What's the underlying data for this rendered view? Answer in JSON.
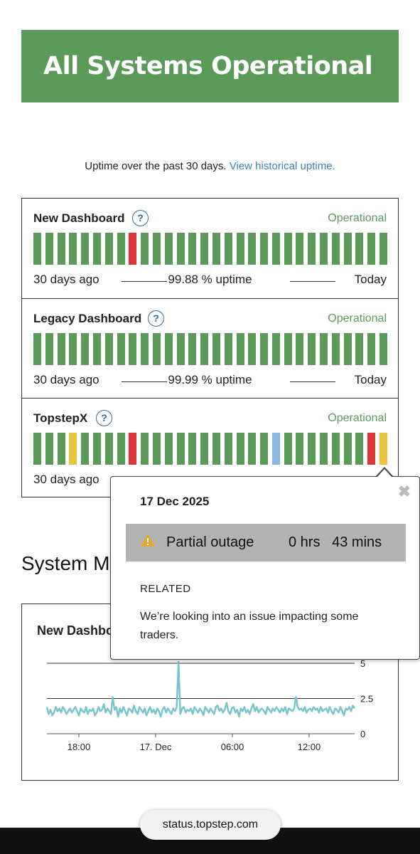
{
  "banner": {
    "title": "All Systems Operational",
    "color": "#5c9a5a"
  },
  "uptime_note": {
    "text": "Uptime over the past 30 days.",
    "link": "View historical uptime."
  },
  "colors": {
    "operational": "#5c9a5a",
    "major_outage": "#d8373a",
    "partial_outage": "#e9c240",
    "maintenance": "#8ab6e0"
  },
  "components": [
    {
      "name": "New Dashboard",
      "help_icon": "question-circle-icon",
      "status": "Operational",
      "days": [
        "ok",
        "ok",
        "ok",
        "ok",
        "ok",
        "ok",
        "ok",
        "ok",
        "major",
        "ok",
        "ok",
        "ok",
        "ok",
        "ok",
        "ok",
        "ok",
        "ok",
        "ok",
        "ok",
        "ok",
        "ok",
        "ok",
        "ok",
        "ok",
        "ok",
        "ok",
        "ok",
        "ok",
        "ok",
        "ok"
      ],
      "left_label": "30 days ago",
      "uptime": "99.88 % uptime",
      "right_label": "Today"
    },
    {
      "name": "Legacy Dashboard",
      "help_icon": "question-circle-icon",
      "status": "Operational",
      "days": [
        "ok",
        "ok",
        "ok",
        "ok",
        "ok",
        "ok",
        "ok",
        "ok",
        "ok",
        "ok",
        "ok",
        "ok",
        "ok",
        "ok",
        "ok",
        "ok",
        "ok",
        "ok",
        "ok",
        "ok",
        "ok",
        "ok",
        "ok",
        "ok",
        "ok",
        "ok",
        "ok",
        "ok",
        "ok",
        "ok"
      ],
      "left_label": "30 days ago",
      "uptime": "99.99 % uptime",
      "right_label": "Today"
    },
    {
      "name": "TopstepX",
      "help_icon": "question-circle-icon",
      "status": "Operational",
      "days": [
        "ok",
        "ok",
        "ok",
        "partial",
        "ok",
        "ok",
        "ok",
        "ok",
        "major",
        "ok",
        "ok",
        "ok",
        "ok",
        "ok",
        "ok",
        "ok",
        "ok",
        "ok",
        "ok",
        "ok",
        "maintenance",
        "ok",
        "ok",
        "ok",
        "ok",
        "ok",
        "ok",
        "ok",
        "major",
        "partial"
      ],
      "left_label": "30 days ago",
      "uptime": "",
      "right_label": ""
    }
  ],
  "tooltip": {
    "date": "17 Dec 2025",
    "close_icon": "close-icon",
    "warning_icon": "warning-triangle-icon",
    "outage_label": "Partial outage",
    "outage_duration": "0 hrs   43 mins",
    "related_label": "RELATED",
    "message": "We’re looking into an issue impacting some traders."
  },
  "metrics": {
    "heading": "System Metrics",
    "chart_title": "New Dashboard"
  },
  "chart_data": {
    "type": "line",
    "title": "New Dashboard",
    "x_tick_labels": [
      "18:00",
      "17. Dec",
      "06:00",
      "12:00"
    ],
    "y_tick_labels": [
      "0",
      "2.5",
      "5"
    ],
    "ylim": [
      0,
      5
    ],
    "grid": true,
    "line_color": "#78c6cc",
    "series": [
      {
        "values": [
          1.9,
          1.4,
          1.7,
          1.3,
          1.5,
          1.9,
          1.6,
          1.8,
          1.5,
          1.9,
          1.7,
          1.4,
          1.6,
          1.8,
          1.5,
          1.7,
          1.9,
          1.6,
          1.3,
          1.8,
          1.6,
          1.5,
          1.9,
          1.4,
          1.7,
          1.6,
          1.8,
          1.3,
          1.5,
          1.9,
          1.6,
          1.7,
          2.1,
          1.5,
          1.8,
          1.6,
          1.4,
          2.6,
          1.7,
          1.9,
          1.2,
          1.8,
          1.5,
          1.9,
          1.6,
          1.3,
          1.8,
          1.7,
          1.5,
          2.0,
          1.6,
          1.4,
          1.9,
          1.7,
          1.5,
          1.8,
          1.3,
          1.6,
          1.9,
          1.5,
          1.7,
          1.4,
          1.8,
          1.6,
          1.2,
          1.7,
          1.9,
          1.5,
          1.8,
          1.6,
          1.4,
          1.8,
          1.6,
          1.9,
          5.1,
          1.4,
          1.8,
          1.9,
          1.5,
          1.7,
          1.6,
          1.8,
          1.4,
          1.9,
          1.7,
          1.5,
          1.8,
          1.6,
          1.3,
          1.9,
          1.7,
          1.5,
          1.8,
          1.6,
          1.4,
          1.9,
          2.0,
          1.6,
          1.8,
          1.5,
          1.7,
          2.2,
          1.6,
          1.4,
          1.8,
          1.9,
          1.5,
          1.7,
          1.2,
          1.8,
          1.6,
          1.9,
          1.5,
          1.7,
          1.4,
          1.8,
          2.1,
          1.6,
          1.9,
          1.5,
          1.7,
          1.8,
          1.6,
          1.4,
          1.9,
          1.7,
          1.5,
          1.8,
          1.6,
          1.9,
          1.7,
          1.5,
          1.8,
          1.6,
          1.9,
          1.4,
          1.8,
          1.7,
          1.6,
          1.8,
          2.6,
          1.9,
          1.7,
          1.8,
          1.6,
          1.9,
          1.5,
          1.7,
          1.8,
          1.6,
          1.9,
          1.7,
          1.8,
          1.5,
          1.9,
          1.6,
          1.7,
          1.8,
          1.5,
          1.9,
          1.6,
          1.4,
          1.8,
          1.7,
          1.5,
          1.9,
          1.6,
          1.3,
          1.8,
          1.7,
          1.9,
          1.6,
          2.0,
          1.8
        ]
      }
    ]
  },
  "browser": {
    "url": "status.topstep.com"
  }
}
